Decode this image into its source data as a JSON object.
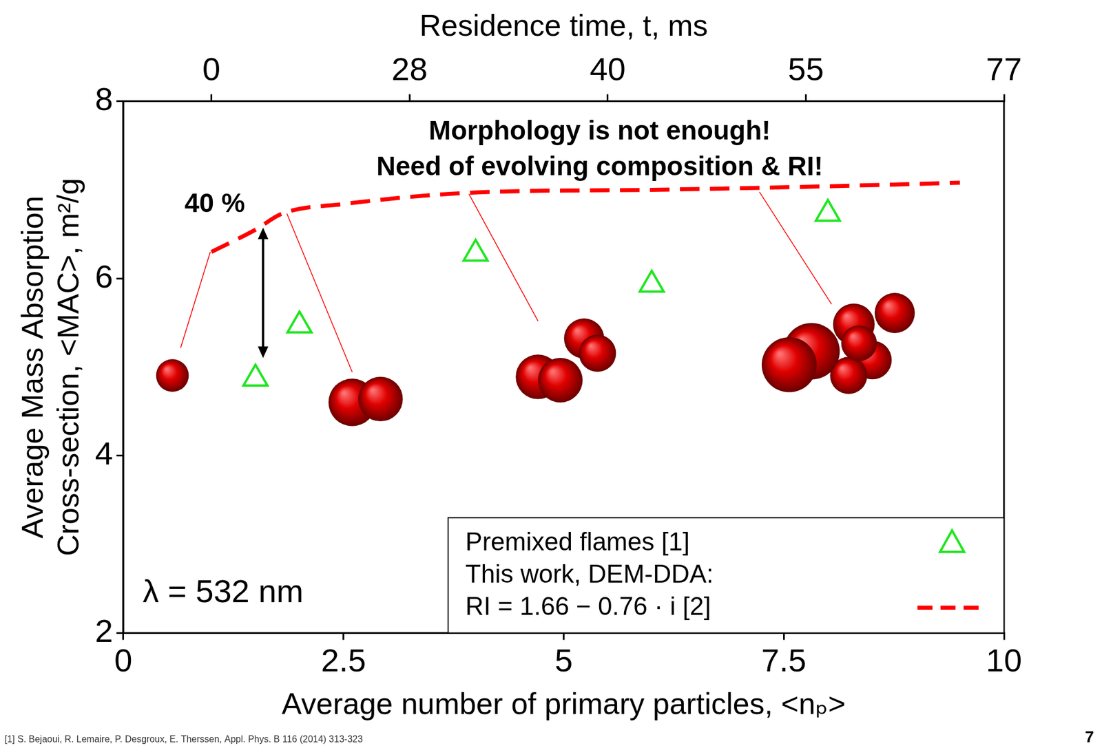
{
  "chart_data": {
    "type": "scatter",
    "title": [
      "Morphology is not enough!",
      "Need of evolving composition & RI!"
    ],
    "xlabel": "Average number of primary particles, <nₚ>",
    "ylabel": "Average Mass Absorption Cross-section, <MAC>, m²/g",
    "x2label": "Residence time, t, ms",
    "xlim": [
      0,
      10
    ],
    "xticks": [
      0,
      2.5,
      5,
      7.5,
      10
    ],
    "ylim": [
      2,
      8
    ],
    "yticks": [
      2,
      4,
      6,
      8
    ],
    "x2lim": [
      0,
      10
    ],
    "x2ticks": [
      {
        "value": 1,
        "label": "0"
      },
      {
        "value": 3.25,
        "label": "28"
      },
      {
        "value": 5.5,
        "label": "40"
      },
      {
        "value": 7.75,
        "label": "55"
      },
      {
        "value": 10,
        "label": "77"
      }
    ],
    "grid": false,
    "legend": "lower right",
    "series": [
      {
        "name": "Premixed flames [1]",
        "color": "#1ee61e",
        "type": "scatter",
        "marker": "triangle",
        "x": [
          1.5,
          2,
          4,
          6,
          8
        ],
        "values": [
          4.87,
          5.47,
          6.28,
          5.93,
          6.73
        ]
      },
      {
        "name": "This work, DEM-DDA: RI = 1.66 − 0.76 · i [2]",
        "color": "#ff0000",
        "type": "line",
        "line_style": "dashed",
        "x": [
          1,
          1.5,
          1.8,
          2.5,
          4,
          6,
          8,
          9.5
        ],
        "values": [
          6.3,
          6.55,
          6.73,
          6.84,
          6.97,
          7.0,
          7.04,
          7.08
        ]
      }
    ],
    "annotations": [
      "40 %",
      "λ = 532 nm"
    ],
    "footnote": "[1] S. Bejaoui, R. Lemaire, P. Desgroux, E. Therssen, Appl. Phys. B 116 (2014) 313-323",
    "page_number": "7"
  }
}
